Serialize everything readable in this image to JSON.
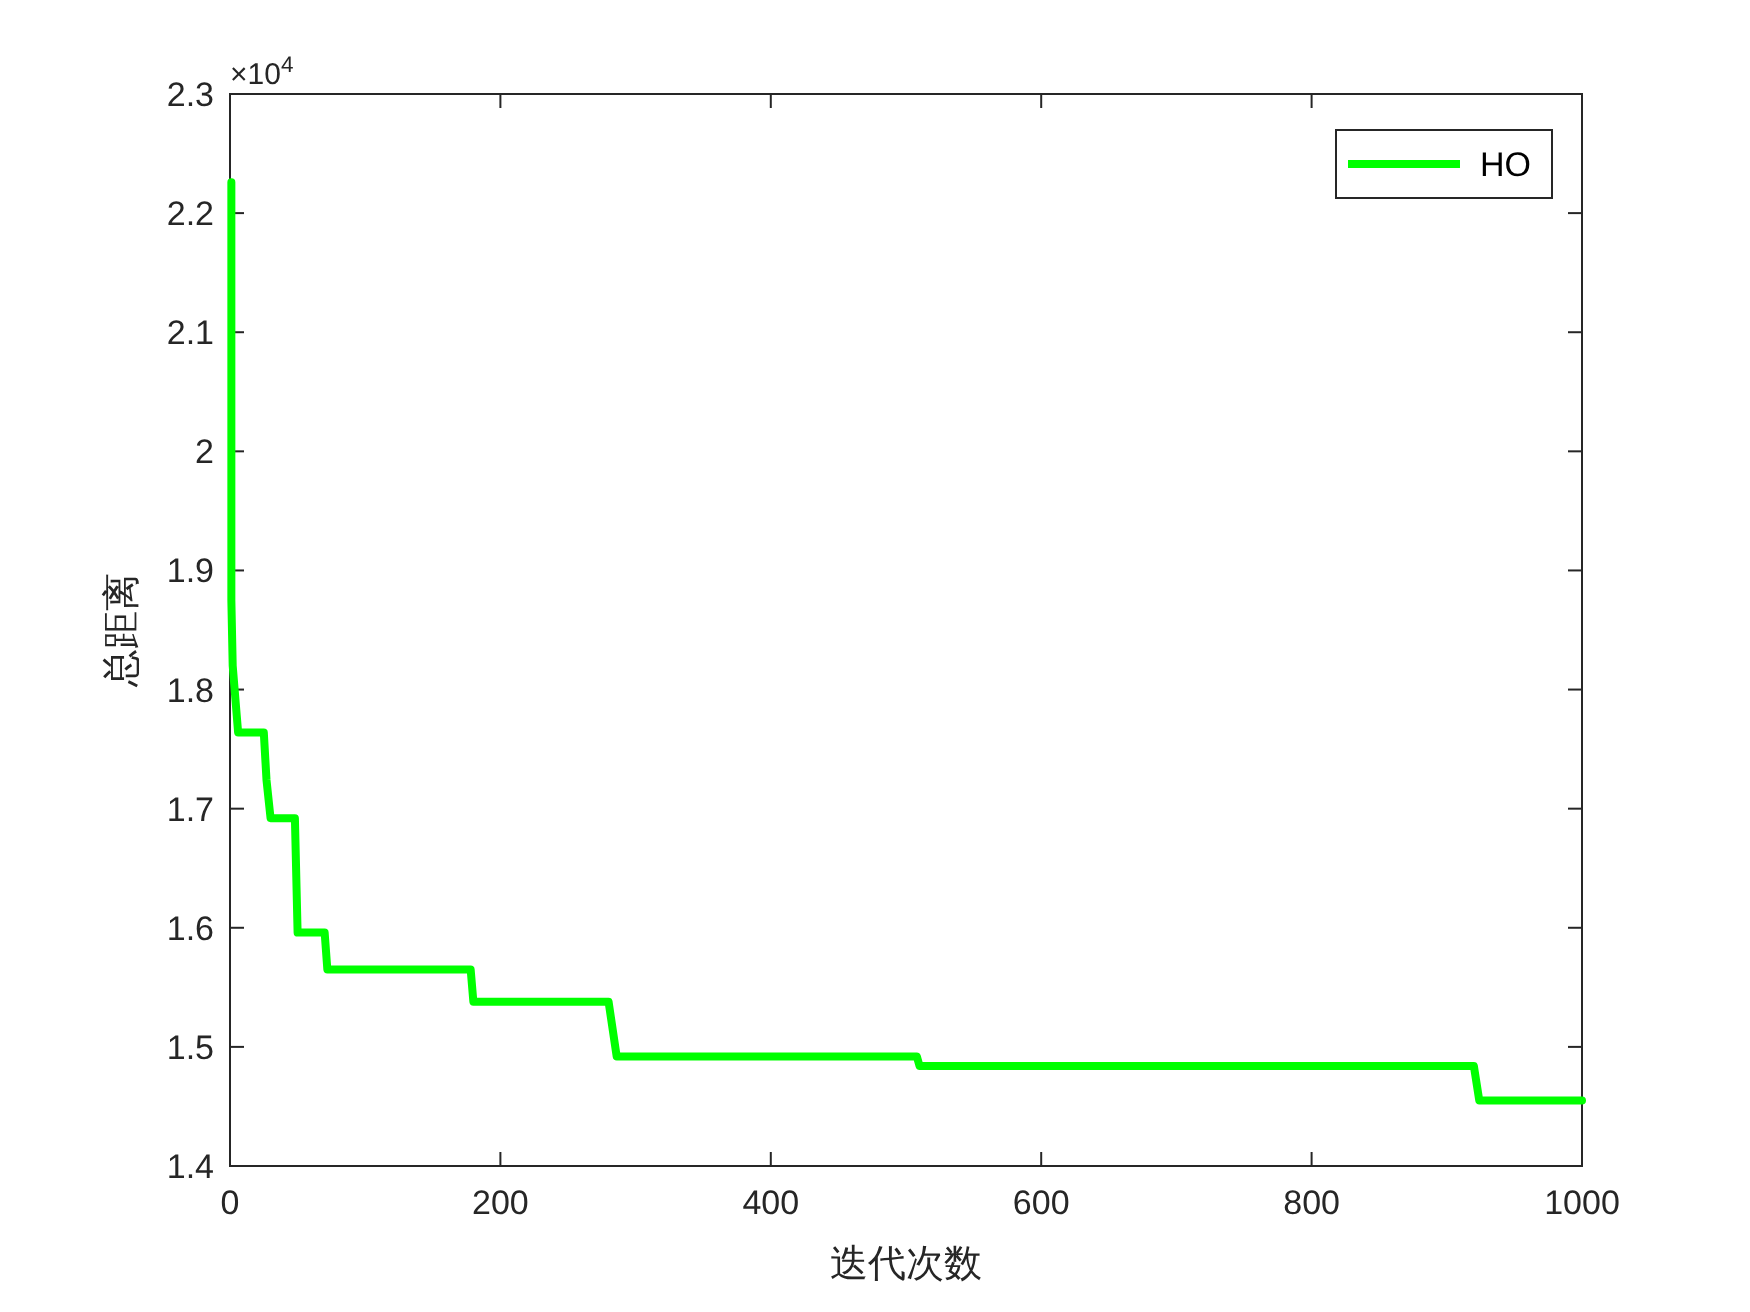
{
  "chart_data": {
    "type": "line",
    "xlabel": "迭代次数",
    "ylabel": "总距离",
    "x": [
      1,
      1,
      2,
      5,
      6,
      25,
      27,
      30,
      48,
      50,
      70,
      72,
      178,
      180,
      280,
      286,
      508,
      510,
      920,
      924,
      1000
    ],
    "series": [
      {
        "name": "HO",
        "color": "#00ff00",
        "values": [
          2.226,
          1.875,
          1.82,
          1.778,
          1.764,
          1.764,
          1.724,
          1.692,
          1.692,
          1.596,
          1.596,
          1.565,
          1.565,
          1.538,
          1.538,
          1.492,
          1.492,
          1.484,
          1.484,
          1.455,
          1.455
        ]
      }
    ],
    "xlim": [
      0,
      1000
    ],
    "xticks": [
      0,
      200,
      400,
      600,
      800,
      1000
    ],
    "ylim": [
      1.4,
      2.3
    ],
    "yticks": [
      1.4,
      1.5,
      1.6,
      1.7,
      1.8,
      1.9,
      2,
      2.1,
      2.2,
      2.3
    ],
    "annotations": [
      "×10$^{4}$"
    ],
    "legend": "top right",
    "grid": false,
    "line_style": "solid",
    "marker": "none"
  }
}
